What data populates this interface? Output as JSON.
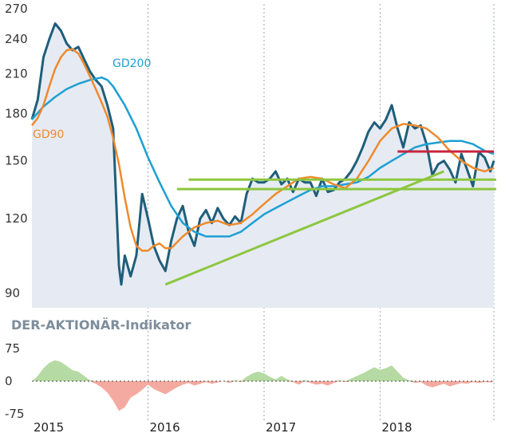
{
  "chart_data": [
    {
      "type": "area",
      "title": "",
      "xlabel": "",
      "ylabel": "",
      "x_ticks": [
        "2015",
        "2016",
        "2017",
        "2018"
      ],
      "y_ticks": [
        "90",
        "120",
        "150",
        "180",
        "210",
        "240",
        "270"
      ],
      "ylim": [
        85,
        275
      ],
      "xlim": [
        2015.0,
        2018.98
      ],
      "y_scale": "log",
      "grid": "vertical",
      "series": [
        {
          "name": "",
          "color": "#1f5e7a",
          "fill": "#e6ebf3",
          "points": [
            [
              2015.0,
              176
            ],
            [
              2015.05,
              190
            ],
            [
              2015.1,
              224
            ],
            [
              2015.15,
              240
            ],
            [
              2015.2,
              255
            ],
            [
              2015.25,
              248
            ],
            [
              2015.3,
              236
            ],
            [
              2015.35,
              230
            ],
            [
              2015.4,
              233
            ],
            [
              2015.45,
              222
            ],
            [
              2015.5,
              212
            ],
            [
              2015.55,
              205
            ],
            [
              2015.6,
              200
            ],
            [
              2015.65,
              186
            ],
            [
              2015.7,
              170
            ],
            [
              2015.72,
              138
            ],
            [
              2015.75,
              100
            ],
            [
              2015.77,
              93
            ],
            [
              2015.8,
              104
            ],
            [
              2015.85,
              96
            ],
            [
              2015.9,
              104
            ],
            [
              2015.95,
              132
            ],
            [
              2016.0,
              120
            ],
            [
              2016.05,
              108
            ],
            [
              2016.1,
              102
            ],
            [
              2016.15,
              98
            ],
            [
              2016.2,
              110
            ],
            [
              2016.25,
              120
            ],
            [
              2016.3,
              126
            ],
            [
              2016.35,
              114
            ],
            [
              2016.4,
              108
            ],
            [
              2016.45,
              120
            ],
            [
              2016.5,
              124
            ],
            [
              2016.55,
              118
            ],
            [
              2016.6,
              125
            ],
            [
              2016.65,
              120
            ],
            [
              2016.7,
              117
            ],
            [
              2016.75,
              121
            ],
            [
              2016.8,
              118
            ],
            [
              2016.85,
              132
            ],
            [
              2016.9,
              140
            ],
            [
              2016.95,
              138
            ],
            [
              2017.0,
              138
            ],
            [
              2017.05,
              140
            ],
            [
              2017.1,
              144
            ],
            [
              2017.15,
              137
            ],
            [
              2017.2,
              140
            ],
            [
              2017.25,
              133
            ],
            [
              2017.3,
              140
            ],
            [
              2017.35,
              138
            ],
            [
              2017.4,
              138
            ],
            [
              2017.45,
              131
            ],
            [
              2017.5,
              140
            ],
            [
              2017.55,
              133
            ],
            [
              2017.6,
              134
            ],
            [
              2017.65,
              138
            ],
            [
              2017.7,
              140
            ],
            [
              2017.75,
              144
            ],
            [
              2017.8,
              150
            ],
            [
              2017.85,
              158
            ],
            [
              2017.9,
              168
            ],
            [
              2017.95,
              174
            ],
            [
              2018.0,
              170
            ],
            [
              2018.05,
              176
            ],
            [
              2018.1,
              186
            ],
            [
              2018.15,
              170
            ],
            [
              2018.2,
              158
            ],
            [
              2018.25,
              174
            ],
            [
              2018.3,
              170
            ],
            [
              2018.35,
              172
            ],
            [
              2018.4,
              160
            ],
            [
              2018.45,
              142
            ],
            [
              2018.5,
              148
            ],
            [
              2018.55,
              150
            ],
            [
              2018.6,
              145
            ],
            [
              2018.65,
              138
            ],
            [
              2018.7,
              154
            ],
            [
              2018.75,
              145
            ],
            [
              2018.8,
              136
            ],
            [
              2018.85,
              155
            ],
            [
              2018.9,
              152
            ],
            [
              2018.95,
              144
            ],
            [
              2018.98,
              150
            ]
          ]
        },
        {
          "name": "GD200",
          "color": "#1d9fd3",
          "points": [
            [
              2015.0,
              176
            ],
            [
              2015.1,
              185
            ],
            [
              2015.2,
              192
            ],
            [
              2015.3,
              198
            ],
            [
              2015.4,
              202
            ],
            [
              2015.5,
              205
            ],
            [
              2015.6,
              207
            ],
            [
              2015.65,
              205
            ],
            [
              2015.7,
              200
            ],
            [
              2015.8,
              186
            ],
            [
              2015.9,
              170
            ],
            [
              2016.0,
              152
            ],
            [
              2016.1,
              138
            ],
            [
              2016.2,
              126
            ],
            [
              2016.3,
              118
            ],
            [
              2016.4,
              114
            ],
            [
              2016.5,
              112
            ],
            [
              2016.6,
              112
            ],
            [
              2016.7,
              112
            ],
            [
              2016.8,
              114
            ],
            [
              2016.9,
              118
            ],
            [
              2017.0,
              122
            ],
            [
              2017.1,
              125
            ],
            [
              2017.2,
              128
            ],
            [
              2017.3,
              131
            ],
            [
              2017.4,
              134
            ],
            [
              2017.5,
              136
            ],
            [
              2017.6,
              136
            ],
            [
              2017.7,
              137
            ],
            [
              2017.8,
              138
            ],
            [
              2017.9,
              141
            ],
            [
              2018.0,
              146
            ],
            [
              2018.1,
              150
            ],
            [
              2018.2,
              154
            ],
            [
              2018.3,
              158
            ],
            [
              2018.4,
              160
            ],
            [
              2018.5,
              161
            ],
            [
              2018.6,
              162
            ],
            [
              2018.7,
              162
            ],
            [
              2018.8,
              160
            ],
            [
              2018.9,
              156
            ],
            [
              2018.98,
              154
            ]
          ]
        },
        {
          "name": "GD90",
          "color": "#ef8a2c",
          "points": [
            [
              2015.0,
              172
            ],
            [
              2015.05,
              177
            ],
            [
              2015.1,
              186
            ],
            [
              2015.15,
              200
            ],
            [
              2015.2,
              214
            ],
            [
              2015.25,
              224
            ],
            [
              2015.3,
              230
            ],
            [
              2015.35,
              231
            ],
            [
              2015.4,
              227
            ],
            [
              2015.45,
              218
            ],
            [
              2015.5,
              208
            ],
            [
              2015.55,
              198
            ],
            [
              2015.6,
              188
            ],
            [
              2015.65,
              178
            ],
            [
              2015.7,
              164
            ],
            [
              2015.75,
              148
            ],
            [
              2015.8,
              130
            ],
            [
              2015.85,
              116
            ],
            [
              2015.9,
              108
            ],
            [
              2015.95,
              106
            ],
            [
              2016.0,
              106
            ],
            [
              2016.05,
              108
            ],
            [
              2016.1,
              109
            ],
            [
              2016.15,
              107
            ],
            [
              2016.2,
              107
            ],
            [
              2016.3,
              112
            ],
            [
              2016.4,
              116
            ],
            [
              2016.5,
              118
            ],
            [
              2016.6,
              119
            ],
            [
              2016.7,
              117
            ],
            [
              2016.8,
              118
            ],
            [
              2016.9,
              122
            ],
            [
              2017.0,
              127
            ],
            [
              2017.1,
              132
            ],
            [
              2017.2,
              136
            ],
            [
              2017.3,
              140
            ],
            [
              2017.4,
              141
            ],
            [
              2017.5,
              140
            ],
            [
              2017.6,
              137
            ],
            [
              2017.7,
              135
            ],
            [
              2017.8,
              140
            ],
            [
              2017.9,
              150
            ],
            [
              2018.0,
              162
            ],
            [
              2018.1,
              170
            ],
            [
              2018.2,
              173
            ],
            [
              2018.3,
              172
            ],
            [
              2018.4,
              170
            ],
            [
              2018.5,
              164
            ],
            [
              2018.6,
              156
            ],
            [
              2018.7,
              150
            ],
            [
              2018.8,
              146
            ],
            [
              2018.9,
              144
            ],
            [
              2018.98,
              146
            ]
          ]
        }
      ],
      "overlay_lines": [
        {
          "role": "support-trend",
          "color": "#8dc63f",
          "from": [
            2016.15,
            93
          ],
          "to": [
            2018.55,
            144
          ]
        },
        {
          "role": "horizontal",
          "color": "#8dc63f",
          "from": [
            2016.35,
            139.5
          ],
          "to": [
            2019.0,
            139.5
          ]
        },
        {
          "role": "horizontal",
          "color": "#8dc63f",
          "from": [
            2016.25,
            134.5
          ],
          "to": [
            2019.0,
            134.5
          ]
        },
        {
          "role": "resistance",
          "color": "#c8243f",
          "from": [
            2018.15,
            155.5
          ],
          "to": [
            2018.98,
            155.5
          ]
        }
      ]
    },
    {
      "type": "area",
      "title": "DER-AKTIONÄR-Indikator",
      "y_ticks": [
        "75",
        "0",
        "-75"
      ],
      "ylim": [
        -85,
        85
      ],
      "xlim": [
        2015.0,
        2018.98
      ],
      "positive_color": "#b6daa3",
      "negative_color": "#f4aaa0",
      "values": [
        [
          2015.0,
          0
        ],
        [
          2015.05,
          12
        ],
        [
          2015.1,
          30
        ],
        [
          2015.15,
          42
        ],
        [
          2015.2,
          48
        ],
        [
          2015.25,
          44
        ],
        [
          2015.3,
          35
        ],
        [
          2015.35,
          25
        ],
        [
          2015.4,
          22
        ],
        [
          2015.45,
          12
        ],
        [
          2015.5,
          2
        ],
        [
          2015.55,
          -6
        ],
        [
          2015.6,
          -14
        ],
        [
          2015.65,
          -26
        ],
        [
          2015.7,
          -45
        ],
        [
          2015.75,
          -68
        ],
        [
          2015.8,
          -60
        ],
        [
          2015.85,
          -38
        ],
        [
          2015.9,
          -30
        ],
        [
          2015.95,
          -20
        ],
        [
          2016.0,
          -8
        ],
        [
          2016.05,
          -18
        ],
        [
          2016.1,
          -24
        ],
        [
          2016.15,
          -30
        ],
        [
          2016.2,
          -22
        ],
        [
          2016.25,
          -14
        ],
        [
          2016.3,
          -8
        ],
        [
          2016.35,
          -4
        ],
        [
          2016.4,
          -10
        ],
        [
          2016.45,
          -6
        ],
        [
          2016.5,
          -2
        ],
        [
          2016.55,
          -6
        ],
        [
          2016.6,
          -3
        ],
        [
          2016.65,
          0
        ],
        [
          2016.7,
          -4
        ],
        [
          2016.75,
          2
        ],
        [
          2016.8,
          -2
        ],
        [
          2016.85,
          10
        ],
        [
          2016.9,
          18
        ],
        [
          2016.95,
          22
        ],
        [
          2017.0,
          18
        ],
        [
          2017.05,
          10
        ],
        [
          2017.1,
          4
        ],
        [
          2017.15,
          12
        ],
        [
          2017.2,
          4
        ],
        [
          2017.25,
          -2
        ],
        [
          2017.3,
          -8
        ],
        [
          2017.35,
          2
        ],
        [
          2017.4,
          -4
        ],
        [
          2017.45,
          -8
        ],
        [
          2017.5,
          -6
        ],
        [
          2017.55,
          -10
        ],
        [
          2017.6,
          -4
        ],
        [
          2017.65,
          2
        ],
        [
          2017.7,
          -2
        ],
        [
          2017.75,
          6
        ],
        [
          2017.8,
          12
        ],
        [
          2017.85,
          18
        ],
        [
          2017.9,
          25
        ],
        [
          2017.95,
          32
        ],
        [
          2018.0,
          26
        ],
        [
          2018.05,
          30
        ],
        [
          2018.1,
          36
        ],
        [
          2018.15,
          22
        ],
        [
          2018.2,
          8
        ],
        [
          2018.25,
          2
        ],
        [
          2018.3,
          -4
        ],
        [
          2018.35,
          -2
        ],
        [
          2018.4,
          -10
        ],
        [
          2018.45,
          -14
        ],
        [
          2018.5,
          -10
        ],
        [
          2018.55,
          -6
        ],
        [
          2018.6,
          -12
        ],
        [
          2018.65,
          -8
        ],
        [
          2018.7,
          -4
        ],
        [
          2018.75,
          -6
        ],
        [
          2018.8,
          -2
        ],
        [
          2018.85,
          -4
        ],
        [
          2018.9,
          -2
        ],
        [
          2018.95,
          -3
        ],
        [
          2018.98,
          -1
        ]
      ]
    }
  ]
}
